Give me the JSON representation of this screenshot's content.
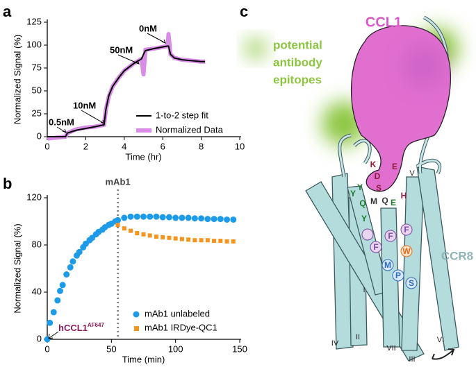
{
  "chart_data": [
    {
      "type": "line",
      "panel": "a",
      "ylabel": "Normalized Signal (%)",
      "xlabel": "Time (hr)",
      "xlim": [
        0,
        10
      ],
      "xticks": [
        0,
        2,
        4,
        6,
        8,
        10
      ],
      "ylim": [
        0,
        125
      ],
      "yticks": [
        0,
        25,
        50,
        75,
        100,
        125
      ],
      "x": [
        0,
        0.5,
        0.95,
        1.05,
        1.5,
        2,
        2.5,
        2.95,
        3.05,
        3.2,
        3.4,
        3.7,
        4,
        4.5,
        4.9,
        5,
        5.1,
        5.5,
        6,
        6.25,
        6.3,
        6.4,
        6.6,
        7,
        7.5,
        8,
        8.2
      ],
      "series": [
        {
          "name": "Normalized Data",
          "color": "#d98ce8",
          "values": [
            -2,
            -1,
            0,
            4,
            8,
            10,
            11,
            13,
            30,
            44,
            55,
            64,
            72,
            80,
            85,
            68,
            95,
            96,
            98,
            99,
            112,
            90,
            86,
            84,
            83,
            82,
            82
          ]
        },
        {
          "name": "1-to-2 step fit",
          "color": "#000000",
          "values": [
            0,
            0,
            0,
            4,
            7,
            9,
            11,
            13,
            30,
            45,
            55,
            64,
            72,
            80,
            85,
            90,
            94,
            96,
            98,
            99,
            99,
            90,
            86,
            84,
            83,
            82,
            82
          ]
        }
      ],
      "annotations": [
        "0.5nM",
        "10nM",
        "50nM",
        "0nM"
      ],
      "legend": "lower right"
    },
    {
      "type": "scatter",
      "panel": "b",
      "ylabel": "Normalized Signal (%)",
      "xlabel": "Time (min)",
      "xlim": [
        0,
        150
      ],
      "xticks": [
        0,
        50,
        100,
        150
      ],
      "ylim": [
        0,
        120
      ],
      "yticks": [
        0,
        40,
        80,
        120
      ],
      "series": [
        {
          "name": "mAb1 unlabeled",
          "color": "#1e9be8",
          "marker": "circle",
          "x": [
            0,
            2,
            5,
            8,
            10,
            12,
            15,
            18,
            20,
            23,
            25,
            28,
            30,
            33,
            35,
            38,
            40,
            43,
            45,
            48,
            50,
            53,
            55,
            60,
            65,
            70,
            75,
            80,
            85,
            90,
            95,
            100,
            105,
            110,
            115,
            120,
            125,
            130,
            135,
            140,
            145
          ],
          "values": [
            0,
            14,
            23,
            33,
            41,
            46,
            55,
            61,
            66,
            71,
            74,
            78,
            81,
            84,
            86,
            89,
            91,
            93,
            95,
            97,
            98,
            100,
            101,
            103,
            104,
            104,
            104,
            104,
            104,
            103.5,
            103.5,
            103,
            103,
            103,
            102.5,
            102.5,
            102,
            102,
            102,
            101.5,
            101.5
          ]
        },
        {
          "name": "mAb1 IRDye-QC1",
          "color": "#f7941d",
          "marker": "square",
          "x": [
            55,
            60,
            65,
            70,
            75,
            80,
            85,
            90,
            95,
            100,
            105,
            110,
            115,
            120,
            125,
            130,
            135,
            140,
            145
          ],
          "values": [
            97,
            94,
            92,
            90,
            89,
            88,
            87,
            86.5,
            86,
            85.5,
            85,
            84.5,
            84,
            84,
            84,
            83.5,
            83.5,
            83,
            83
          ]
        }
      ],
      "vline": {
        "x": 55,
        "label": "mAb1"
      },
      "annotation": {
        "text": "hCCL1",
        "sup": "AF647"
      },
      "legend": "lower right"
    }
  ],
  "diagram": {
    "panel": "c",
    "ligand": "CCL1",
    "epitopes": [
      "potential",
      "antibody",
      "epitopes"
    ],
    "receptor": "CCR8",
    "helices": [
      "I",
      "II",
      "III",
      "IV",
      "V",
      "VI",
      "VII"
    ],
    "residues": [
      "K",
      "D",
      "E",
      "Y",
      "S",
      "Q",
      "M",
      "Q",
      "E",
      "H",
      "Y",
      "Y",
      "F",
      "F",
      "F",
      "W",
      "M",
      "P",
      "S"
    ]
  }
}
